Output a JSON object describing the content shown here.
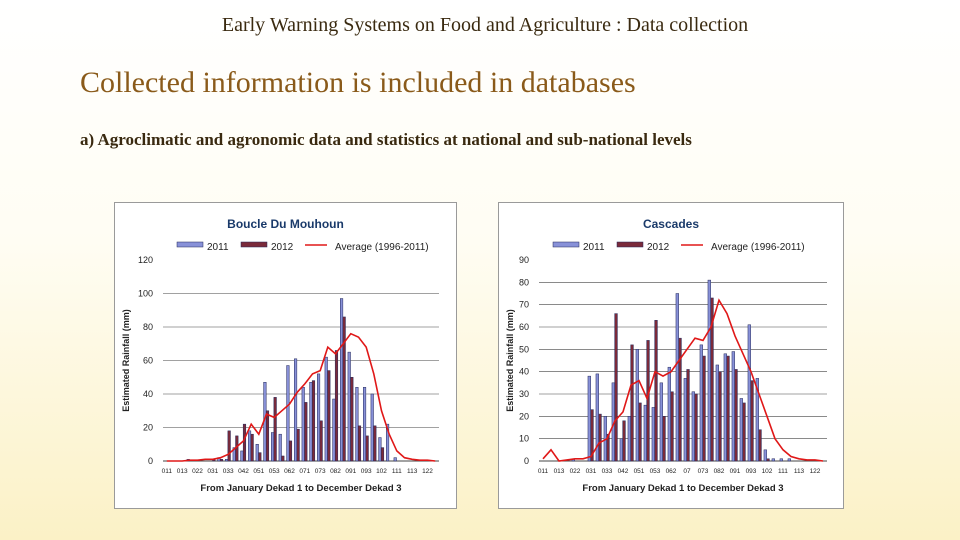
{
  "slide": {
    "header": "Early Warning Systems on Food and Agriculture : Data collection",
    "title": "Collected information is included in databases",
    "subtitle": "a) Agroclimatic and agronomic data and statistics at national and sub-national levels"
  },
  "colors": {
    "bar_2011": "#8891d8",
    "bar_2012": "#7a2a3a",
    "line_average": "#e01818",
    "chart_title": "#1a3a6a"
  },
  "chart_data": [
    {
      "type": "bar",
      "title": "Boucle Du Mouhoun",
      "xlabel": "From January Dekad 1 to December Dekad 3",
      "ylabel": "Estimated Rainfall (mm)",
      "ylim": [
        0,
        120
      ],
      "yticks": [
        0,
        20,
        40,
        60,
        80,
        100,
        120
      ],
      "grid": true,
      "legend": "top",
      "xtick_labels": [
        "011",
        "013",
        "022",
        "031",
        "033",
        "042",
        "051",
        "053",
        "062",
        "071",
        "073",
        "082",
        "091",
        "093",
        "102",
        "111",
        "113",
        "122"
      ],
      "categories": [
        "011",
        "012",
        "013",
        "021",
        "022",
        "023",
        "031",
        "032",
        "033",
        "041",
        "042",
        "043",
        "051",
        "052",
        "053",
        "061",
        "062",
        "063",
        "071",
        "072",
        "073",
        "081",
        "082",
        "083",
        "091",
        "092",
        "093",
        "101",
        "102",
        "103",
        "111",
        "112",
        "113",
        "121",
        "122",
        "123"
      ],
      "series": [
        {
          "name": "2011",
          "kind": "bar",
          "values": [
            0,
            0,
            0,
            1,
            0,
            0,
            0,
            2,
            1,
            8,
            6,
            18,
            10,
            47,
            17,
            16,
            57,
            61,
            44,
            47,
            52,
            62,
            37,
            97,
            65,
            44,
            44,
            40,
            14,
            22,
            2,
            0,
            0,
            0,
            0,
            0
          ]
        },
        {
          "name": "2012",
          "kind": "bar",
          "values": [
            0,
            0,
            0,
            0,
            0,
            0,
            1,
            1,
            18,
            15,
            22,
            16,
            5,
            30,
            38,
            3,
            12,
            19,
            35,
            48,
            24,
            54,
            66,
            86,
            50,
            21,
            15,
            21,
            8,
            0,
            0,
            0,
            0,
            0,
            0,
            0
          ]
        },
        {
          "name": "Average (1996-2011)",
          "kind": "line",
          "values": [
            0,
            0,
            0,
            0.5,
            0.5,
            1,
            1,
            2,
            4,
            8,
            12,
            22,
            16,
            28,
            26,
            30,
            34,
            41,
            46,
            52,
            54,
            68,
            64,
            70,
            76,
            74,
            68,
            52,
            30,
            16,
            6,
            2,
            1,
            0.5,
            0.5,
            0
          ]
        }
      ]
    },
    {
      "type": "bar",
      "title": "Cascades",
      "xlabel": "From January Dekad 1 to December Dekad 3",
      "ylabel": "Estimated Rainfall (mm)",
      "ylim": [
        0,
        90
      ],
      "yticks": [
        0,
        10,
        20,
        30,
        40,
        50,
        60,
        70,
        80,
        90
      ],
      "grid": true,
      "legend": "top",
      "xtick_labels": [
        "011",
        "013",
        "022",
        "031",
        "033",
        "042",
        "051",
        "053",
        "062",
        "07",
        "073",
        "082",
        "091",
        "093",
        "102",
        "111",
        "113",
        "122"
      ],
      "categories": [
        "011",
        "012",
        "013",
        "021",
        "022",
        "023",
        "031",
        "032",
        "033",
        "041",
        "042",
        "043",
        "051",
        "052",
        "053",
        "061",
        "062",
        "063",
        "071",
        "072",
        "073",
        "081",
        "082",
        "083",
        "091",
        "092",
        "093",
        "101",
        "102",
        "103",
        "111",
        "112",
        "113",
        "121",
        "122",
        "123"
      ],
      "series": [
        {
          "name": "2011",
          "kind": "bar",
          "values": [
            0,
            0,
            0,
            0,
            1,
            0,
            38,
            39,
            20,
            35,
            10,
            20,
            50,
            25,
            24,
            35,
            42,
            75,
            37,
            31,
            52,
            81,
            43,
            48,
            49,
            28,
            61,
            37,
            5,
            1,
            1,
            1,
            0,
            0,
            0,
            0
          ]
        },
        {
          "name": "2012",
          "kind": "bar",
          "values": [
            0,
            0,
            0,
            0,
            0,
            0,
            23,
            21,
            12,
            66,
            18,
            52,
            26,
            54,
            63,
            20,
            31,
            55,
            41,
            30,
            47,
            73,
            40,
            47,
            41,
            26,
            36,
            14,
            1,
            0,
            0,
            0,
            0,
            0,
            0,
            0
          ]
        },
        {
          "name": "Average (1996-2011)",
          "kind": "line",
          "values": [
            1,
            5,
            0,
            0.5,
            1,
            1,
            2,
            8,
            10,
            18,
            22,
            34,
            36,
            28,
            40,
            38,
            40,
            45,
            50,
            55,
            54,
            60,
            72,
            66,
            56,
            48,
            40,
            30,
            20,
            10,
            5,
            2,
            1,
            0.5,
            0.5,
            0
          ]
        }
      ]
    }
  ]
}
